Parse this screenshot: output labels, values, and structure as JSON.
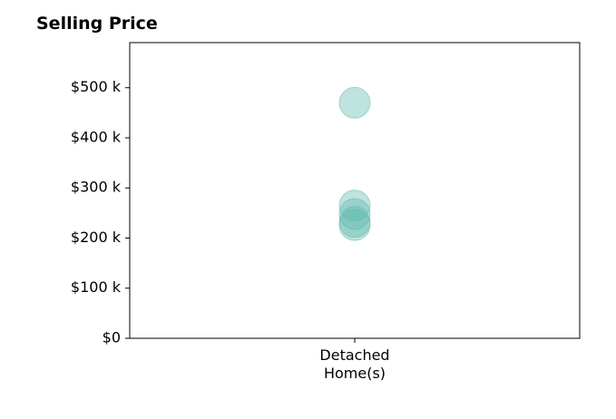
{
  "chart_data": {
    "type": "scatter",
    "title": "Selling Price",
    "categories": [
      "Detached Home(s)"
    ],
    "category_label_lines": [
      "Detached",
      "Home(s)"
    ],
    "y_ticks": [
      {
        "value": 0,
        "label": "$0"
      },
      {
        "value": 100000,
        "label": "$100 k"
      },
      {
        "value": 200000,
        "label": "$200 k"
      },
      {
        "value": 300000,
        "label": "$300 k"
      },
      {
        "value": 400000,
        "label": "$400 k"
      },
      {
        "value": 500000,
        "label": "$500 k"
      }
    ],
    "ylim": [
      0,
      590000
    ],
    "grid": false,
    "legend": "none",
    "marker_color": "#5fb8ad",
    "series": [
      {
        "category": "Detached Home(s)",
        "values": [
          470000,
          265000,
          248000,
          232000,
          226000
        ]
      }
    ]
  }
}
